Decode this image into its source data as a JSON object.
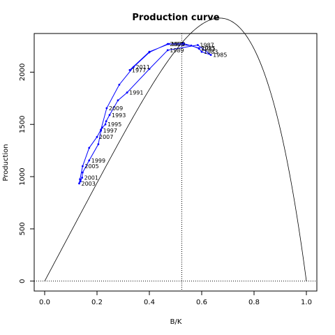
{
  "chart_data": {
    "type": "line",
    "title": "Production curve",
    "xlabel": "B/K",
    "ylabel": "Production",
    "xlim": [
      -0.04,
      1.04
    ],
    "ylim": [
      -95,
      2370
    ],
    "xticks": [
      0.0,
      0.2,
      0.4,
      0.6,
      0.8,
      1.0
    ],
    "xtick_labels": [
      "0.0",
      "0.2",
      "0.4",
      "0.6",
      "0.8",
      "1.0"
    ],
    "yticks": [
      0,
      500,
      1000,
      1500,
      2000
    ],
    "ytick_labels": [
      "0",
      "500",
      "1000",
      "1500",
      "2000"
    ],
    "reference_lines": {
      "hline_y": 0,
      "vline_x": 0.524,
      "style": "dotted"
    },
    "fitted_curve": {
      "model": "Pella-Tomlinson",
      "msy": 2280,
      "bmsy_over_k": 0.524,
      "color": "#000000"
    },
    "series": [
      {
        "color": "#0000ff",
        "points": [
          {
            "label": "1977",
            "x": 0.325,
            "y": 2020
          },
          {
            "label": "",
            "x": 0.4,
            "y": 2195
          },
          {
            "label": "1979",
            "x": 0.475,
            "y": 2270
          },
          {
            "label": "",
            "x": 0.56,
            "y": 2255
          },
          {
            "label": "1981",
            "x": 0.59,
            "y": 2225
          },
          {
            "label": "1983",
            "x": 0.6,
            "y": 2195
          },
          {
            "label": "1985",
            "x": 0.635,
            "y": 2165
          },
          {
            "label": "1987",
            "x": 0.585,
            "y": 2260
          },
          {
            "label": "1989",
            "x": 0.47,
            "y": 2210
          },
          {
            "label": "",
            "x": 0.4,
            "y": 2030
          },
          {
            "label": "1991",
            "x": 0.315,
            "y": 1805
          },
          {
            "label": "",
            "x": 0.28,
            "y": 1730
          },
          {
            "label": "1993",
            "x": 0.248,
            "y": 1590
          },
          {
            "label": "",
            "x": 0.235,
            "y": 1530
          },
          {
            "label": "1995",
            "x": 0.232,
            "y": 1500
          },
          {
            "label": "",
            "x": 0.22,
            "y": 1470
          },
          {
            "label": "1997",
            "x": 0.215,
            "y": 1440
          },
          {
            "label": "",
            "x": 0.205,
            "y": 1310
          },
          {
            "label": "1999",
            "x": 0.17,
            "y": 1155
          },
          {
            "label": "",
            "x": 0.145,
            "y": 1040
          },
          {
            "label": "2001",
            "x": 0.143,
            "y": 990
          },
          {
            "label": "",
            "x": 0.137,
            "y": 955
          },
          {
            "label": "2003",
            "x": 0.132,
            "y": 935
          },
          {
            "label": "",
            "x": 0.135,
            "y": 975
          },
          {
            "label": "2005",
            "x": 0.145,
            "y": 1100
          },
          {
            "label": "",
            "x": 0.17,
            "y": 1275
          },
          {
            "label": "2007",
            "x": 0.2,
            "y": 1380
          },
          {
            "label": "",
            "x": 0.215,
            "y": 1450
          },
          {
            "label": "2009",
            "x": 0.237,
            "y": 1655
          },
          {
            "label": "",
            "x": 0.285,
            "y": 1880
          },
          {
            "label": "2011",
            "x": 0.34,
            "y": 2050
          },
          {
            "label": "",
            "x": 0.4,
            "y": 2190
          },
          {
            "label": "2013",
            "x": 0.47,
            "y": 2270
          },
          {
            "label": "",
            "x": 0.53,
            "y": 2275
          },
          {
            "label": "2015",
            "x": 0.59,
            "y": 2230
          }
        ]
      }
    ]
  }
}
